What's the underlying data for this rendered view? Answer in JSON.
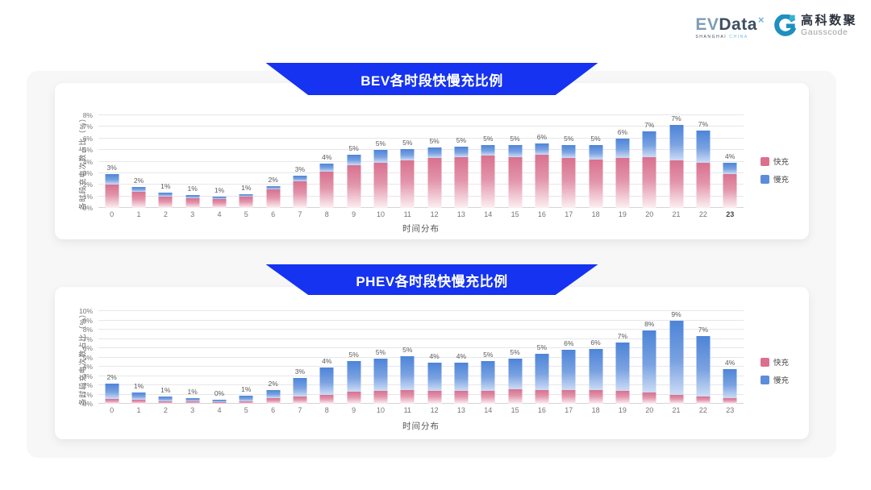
{
  "header": {
    "evdata": {
      "ev": "EV",
      "data": "Data",
      "x_mark": "×",
      "sub_left": "SHANGHAI",
      "sub_right": "CHINA"
    },
    "gausscode": {
      "name_cjk": "高科数聚",
      "name_latin": "Gausscode"
    }
  },
  "colors": {
    "banner_blue": "#1533f0",
    "panel_bg": "#f7f7f8",
    "card_bg": "#ffffff",
    "fast_pink": "#dc6f8d",
    "slow_blue": "#5d8cdb",
    "gauss_teal": "#1f8fc0",
    "gauss_teal_light": "#35b3cf"
  },
  "chart_data": [
    {
      "type": "bar",
      "stacked": true,
      "title": "BEV各时段快慢充比例",
      "xlabel": "时间分布",
      "ylabel": "各时段充电次数占比（%）",
      "ylim": [
        0,
        8
      ],
      "ytick_step": 1,
      "ytick_suffix": "%",
      "grid": true,
      "legend_position": "right",
      "categories": [
        "0",
        "1",
        "2",
        "3",
        "4",
        "5",
        "6",
        "7",
        "8",
        "9",
        "10",
        "11",
        "12",
        "13",
        "14",
        "15",
        "16",
        "17",
        "18",
        "19",
        "20",
        "21",
        "22",
        "23"
      ],
      "bold_xticks": [
        "23"
      ],
      "series": [
        {
          "name": "快充",
          "color": "#dc6f8d",
          "gradient": [
            "#d8718e",
            "#e294ab",
            "#fbeff2"
          ],
          "values": [
            2.0,
            1.4,
            1.0,
            0.85,
            0.75,
            0.95,
            1.6,
            2.3,
            3.1,
            3.7,
            3.9,
            4.1,
            4.3,
            4.4,
            4.5,
            4.4,
            4.6,
            4.3,
            4.2,
            4.3,
            4.4,
            4.1,
            3.9,
            2.9
          ]
        },
        {
          "name": "慢充",
          "color": "#5d8cdb",
          "gradient": [
            "#4d84d8",
            "#7aa2e1",
            "#ccdcf5"
          ],
          "values": [
            0.9,
            0.4,
            0.3,
            0.25,
            0.2,
            0.25,
            0.3,
            0.5,
            0.7,
            0.9,
            1.1,
            1.0,
            0.9,
            0.9,
            0.9,
            1.0,
            1.0,
            1.1,
            1.2,
            1.7,
            2.2,
            3.1,
            2.8,
            1.0
          ]
        }
      ],
      "bar_total_labels": [
        "3%",
        "2%",
        "1%",
        "1%",
        "1%",
        "1%",
        "2%",
        "3%",
        "4%",
        "5%",
        "5%",
        "5%",
        "5%",
        "5%",
        "5%",
        "5%",
        "6%",
        "5%",
        "5%",
        "6%",
        "7%",
        "7%",
        "7%",
        "4%"
      ]
    },
    {
      "type": "bar",
      "stacked": true,
      "title": "PHEV各时段快慢充比例",
      "xlabel": "时间分布",
      "ylabel": "各时段充电次数占比（%）",
      "ylim": [
        0,
        10
      ],
      "ytick_step": 1,
      "ytick_suffix": "%",
      "grid": true,
      "legend_position": "right",
      "categories": [
        "0",
        "1",
        "2",
        "3",
        "4",
        "5",
        "6",
        "7",
        "8",
        "9",
        "10",
        "11",
        "12",
        "13",
        "14",
        "15",
        "16",
        "17",
        "18",
        "19",
        "20",
        "21",
        "22",
        "23"
      ],
      "bold_xticks": [],
      "series": [
        {
          "name": "快充",
          "color": "#dc6f8d",
          "gradient": [
            "#d8718e",
            "#e294ab",
            "#fbeff2"
          ],
          "values": [
            0.5,
            0.4,
            0.3,
            0.25,
            0.2,
            0.3,
            0.6,
            0.8,
            1.0,
            1.3,
            1.4,
            1.5,
            1.4,
            1.4,
            1.4,
            1.6,
            1.5,
            1.5,
            1.5,
            1.4,
            1.2,
            1.0,
            0.8,
            0.6
          ]
        },
        {
          "name": "慢充",
          "color": "#5d8cdb",
          "gradient": [
            "#4d84d8",
            "#7aa2e1",
            "#ccdcf5"
          ],
          "values": [
            1.7,
            0.8,
            0.5,
            0.35,
            0.25,
            0.55,
            0.9,
            2.0,
            2.9,
            3.3,
            3.5,
            3.6,
            3.0,
            3.0,
            3.2,
            3.3,
            3.9,
            4.3,
            4.4,
            5.2,
            6.7,
            8.0,
            6.5,
            3.1
          ]
        }
      ],
      "bar_total_labels": [
        "2%",
        "1%",
        "1%",
        "1%",
        "0%",
        "1%",
        "2%",
        "3%",
        "4%",
        "5%",
        "5%",
        "5%",
        "4%",
        "4%",
        "5%",
        "5%",
        "5%",
        "6%",
        "6%",
        "7%",
        "8%",
        "9%",
        "7%",
        "4%"
      ]
    }
  ]
}
